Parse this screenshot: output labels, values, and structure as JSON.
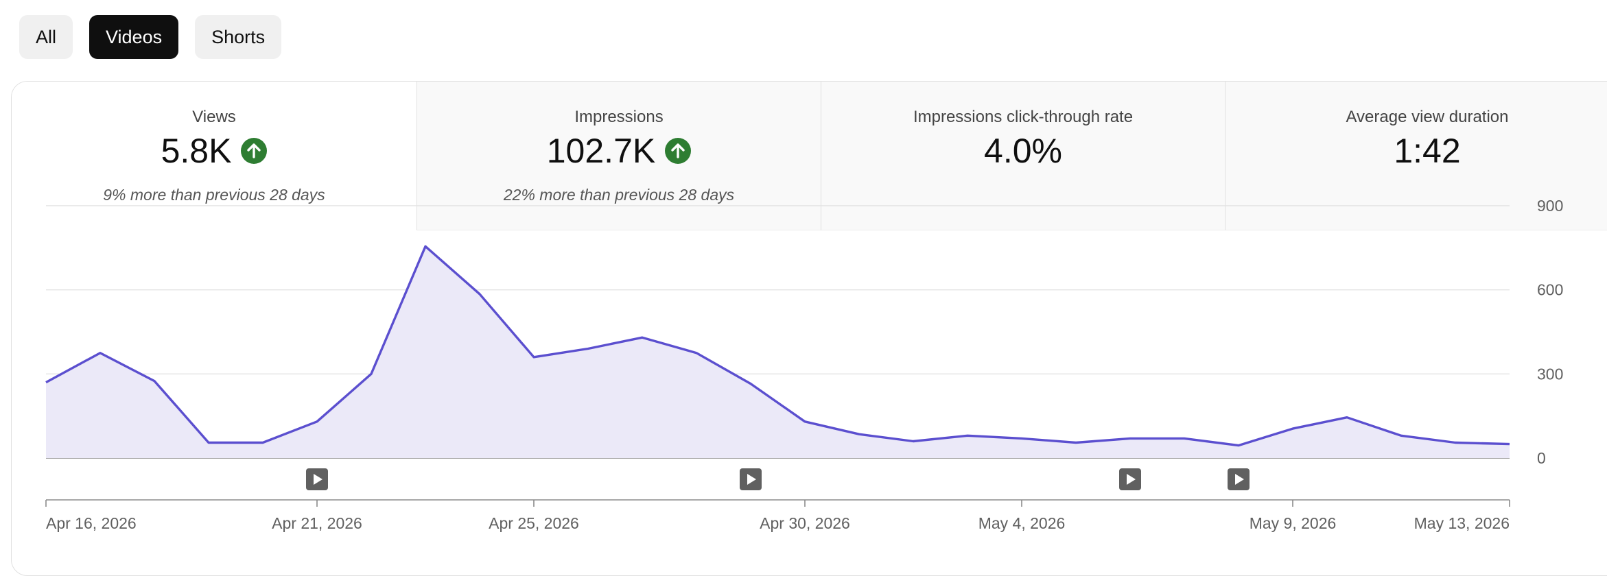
{
  "filters": {
    "all": "All",
    "videos": "Videos",
    "shorts": "Shorts",
    "active": "Videos"
  },
  "metrics": [
    {
      "label": "Views",
      "value": "5.8K",
      "trend": "up",
      "comparison": "9% more than previous 28 days"
    },
    {
      "label": "Impressions",
      "value": "102.7K",
      "trend": "up",
      "comparison": "22% more than previous 28 days"
    },
    {
      "label": "Impressions click-through rate",
      "value": "4.0%",
      "trend": "",
      "comparison": ""
    },
    {
      "label": "Average view duration",
      "value": "1:42",
      "trend": "",
      "comparison": ""
    }
  ],
  "colors": {
    "line": "#5b4fcf",
    "fill": "#ebe9f8",
    "trend_up": "#2e7d32",
    "marker": "#606060"
  },
  "chart_data": {
    "type": "area",
    "x": [
      "Apr 16, 2026",
      "Apr 17, 2026",
      "Apr 18, 2026",
      "Apr 19, 2026",
      "Apr 20, 2026",
      "Apr 21, 2026",
      "Apr 22, 2026",
      "Apr 23, 2026",
      "Apr 24, 2026",
      "Apr 25, 2026",
      "Apr 26, 2026",
      "Apr 27, 2026",
      "Apr 28, 2026",
      "Apr 29, 2026",
      "Apr 30, 2026",
      "May 1, 2026",
      "May 2, 2026",
      "May 3, 2026",
      "May 4, 2026",
      "May 5, 2026",
      "May 6, 2026",
      "May 7, 2026",
      "May 8, 2026",
      "May 9, 2026",
      "May 10, 2026",
      "May 11, 2026",
      "May 12, 2026",
      "May 13, 2026"
    ],
    "series": [
      {
        "values": [
          270,
          375,
          275,
          55,
          55,
          130,
          300,
          755,
          585,
          360,
          390,
          430,
          375,
          265,
          130,
          85,
          60,
          80,
          70,
          55,
          70,
          70,
          45,
          105,
          145,
          80,
          55,
          50
        ]
      }
    ],
    "ylim": [
      0,
      900
    ],
    "yticks": [
      0,
      300,
      600,
      900
    ],
    "x_tick_labels": [
      {
        "index": 0,
        "label": "Apr 16, 2026"
      },
      {
        "index": 5,
        "label": "Apr 21, 2026"
      },
      {
        "index": 9,
        "label": "Apr 25, 2026"
      },
      {
        "index": 14,
        "label": "Apr 30, 2026"
      },
      {
        "index": 18,
        "label": "May 4, 2026"
      },
      {
        "index": 23,
        "label": "May 9, 2026"
      },
      {
        "index": 27,
        "label": "May 13, 2026"
      }
    ],
    "video_published_markers": [
      "Apr 21, 2026",
      "Apr 29, 2026",
      "May 6, 2026",
      "May 8, 2026"
    ],
    "grid": true,
    "y_axis_position": "right"
  }
}
